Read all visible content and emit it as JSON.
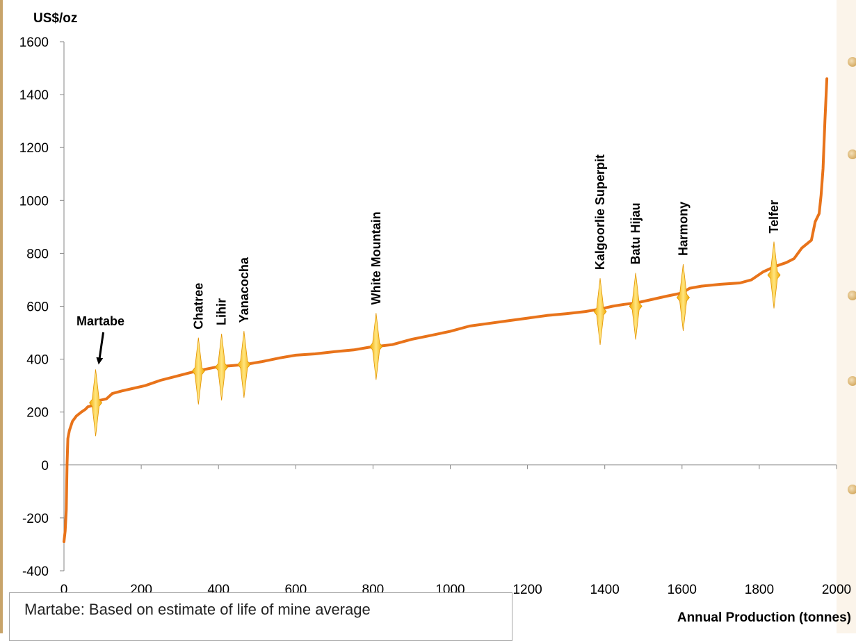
{
  "chart_data": {
    "type": "line",
    "ylabel": "US$/oz",
    "xlabel": "Annual Production (tonnes)",
    "xlim": [
      0,
      2000
    ],
    "ylim": [
      -400,
      1600
    ],
    "x_ticks": [
      0,
      200,
      400,
      600,
      800,
      1000,
      1200,
      1400,
      1600,
      1800,
      2000
    ],
    "y_ticks": [
      1600,
      1400,
      1200,
      1000,
      800,
      600,
      400,
      200,
      0,
      -200,
      -400
    ],
    "grid": false,
    "series": [
      {
        "color": "#e8731a",
        "points": [
          [
            0,
            -290
          ],
          [
            3,
            -250
          ],
          [
            6,
            -170
          ],
          [
            8,
            0
          ],
          [
            10,
            100
          ],
          [
            14,
            130
          ],
          [
            22,
            165
          ],
          [
            32,
            185
          ],
          [
            45,
            200
          ],
          [
            55,
            210
          ],
          [
            62,
            220
          ],
          [
            75,
            225
          ],
          [
            85,
            235
          ],
          [
            95,
            245
          ],
          [
            110,
            250
          ],
          [
            125,
            270
          ],
          [
            150,
            280
          ],
          [
            180,
            290
          ],
          [
            210,
            300
          ],
          [
            250,
            320
          ],
          [
            290,
            335
          ],
          [
            330,
            350
          ],
          [
            360,
            360
          ],
          [
            400,
            372
          ],
          [
            430,
            375
          ],
          [
            470,
            380
          ],
          [
            510,
            390
          ],
          [
            560,
            405
          ],
          [
            600,
            415
          ],
          [
            650,
            420
          ],
          [
            700,
            428
          ],
          [
            750,
            435
          ],
          [
            790,
            445
          ],
          [
            810,
            448
          ],
          [
            850,
            455
          ],
          [
            900,
            475
          ],
          [
            950,
            490
          ],
          [
            1000,
            505
          ],
          [
            1050,
            525
          ],
          [
            1100,
            535
          ],
          [
            1150,
            545
          ],
          [
            1200,
            555
          ],
          [
            1250,
            565
          ],
          [
            1300,
            572
          ],
          [
            1350,
            580
          ],
          [
            1390,
            590
          ],
          [
            1420,
            600
          ],
          [
            1450,
            607
          ],
          [
            1480,
            612
          ],
          [
            1520,
            625
          ],
          [
            1560,
            638
          ],
          [
            1600,
            650
          ],
          [
            1620,
            668
          ],
          [
            1650,
            676
          ],
          [
            1700,
            683
          ],
          [
            1750,
            688
          ],
          [
            1780,
            700
          ],
          [
            1810,
            730
          ],
          [
            1840,
            750
          ],
          [
            1870,
            765
          ],
          [
            1890,
            780
          ],
          [
            1910,
            820
          ],
          [
            1935,
            850
          ],
          [
            1945,
            920
          ],
          [
            1955,
            950
          ],
          [
            1960,
            1020
          ],
          [
            1965,
            1120
          ],
          [
            1970,
            1300
          ],
          [
            1975,
            1460
          ]
        ]
      }
    ],
    "annotations": [
      {
        "label": "Martabe",
        "x": 82,
        "y": 235,
        "arrow": true
      },
      {
        "label": "Chatree",
        "x": 348,
        "y": 355
      },
      {
        "label": "Lihir",
        "x": 408,
        "y": 370
      },
      {
        "label": "Yanacocha",
        "x": 466,
        "y": 380
      },
      {
        "label": "White Mountain",
        "x": 808,
        "y": 448
      },
      {
        "label": "Kalgoorlie Superpit",
        "x": 1388,
        "y": 580
      },
      {
        "label": "Batu Hijau",
        "x": 1480,
        "y": 600
      },
      {
        "label": "Harmony",
        "x": 1603,
        "y": 633
      },
      {
        "label": "Telfer",
        "x": 1838,
        "y": 718
      }
    ]
  },
  "note": {
    "text": "Martabe: Based on estimate of life of mine average"
  }
}
